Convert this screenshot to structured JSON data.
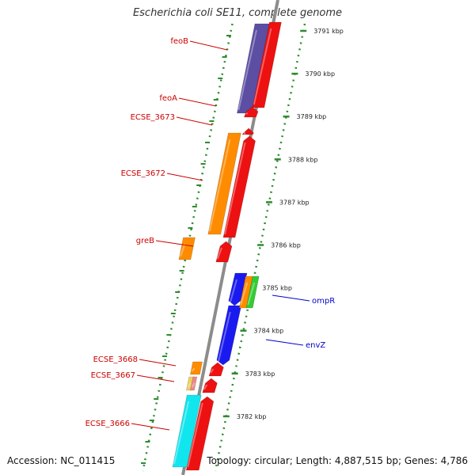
{
  "title": "Escherichia coli SE11, complete genome",
  "footer": {
    "accession": "Accession: NC_011415",
    "summary": "Topology: circular; Length: 4,887,515 bp; Genes: 4,786"
  },
  "colors": {
    "backbone": "#8c8c8c",
    "tick": "#2e8b2e",
    "left_label": "#cc0000",
    "right_label": "#0000cc",
    "purple": "#5b4ea3",
    "red": "#ee1111",
    "orange": "#ff8c00",
    "blue": "#1a1af0",
    "green": "#33cc33",
    "cyan": "#11e6ee",
    "salmon": "#ee8888",
    "yellow": "#f0d060"
  },
  "scale_ticks": [
    {
      "kbp": 3791,
      "label": "3791 kbp"
    },
    {
      "kbp": 3790,
      "label": "3790 kbp"
    },
    {
      "kbp": 3789,
      "label": "3789 kbp"
    },
    {
      "kbp": 3788,
      "label": "3788 kbp"
    },
    {
      "kbp": 3787,
      "label": "3787 kbp"
    },
    {
      "kbp": 3786,
      "label": "3786 kbp"
    },
    {
      "kbp": 3785,
      "label": "3785 kbp"
    },
    {
      "kbp": 3784,
      "label": "3784 kbp"
    },
    {
      "kbp": 3783,
      "label": "3783 kbp"
    },
    {
      "kbp": 3782,
      "label": "3782 kbp"
    }
  ],
  "labels_left": [
    {
      "text": "feoB"
    },
    {
      "text": "feoA"
    },
    {
      "text": "ECSE_3673"
    },
    {
      "text": "ECSE_3672"
    },
    {
      "text": "greB"
    },
    {
      "text": "ECSE_3668"
    },
    {
      "text": "ECSE_3667"
    },
    {
      "text": "ECSE_3666"
    }
  ],
  "labels_right": [
    {
      "text": "ompR"
    },
    {
      "text": "envZ"
    }
  ]
}
